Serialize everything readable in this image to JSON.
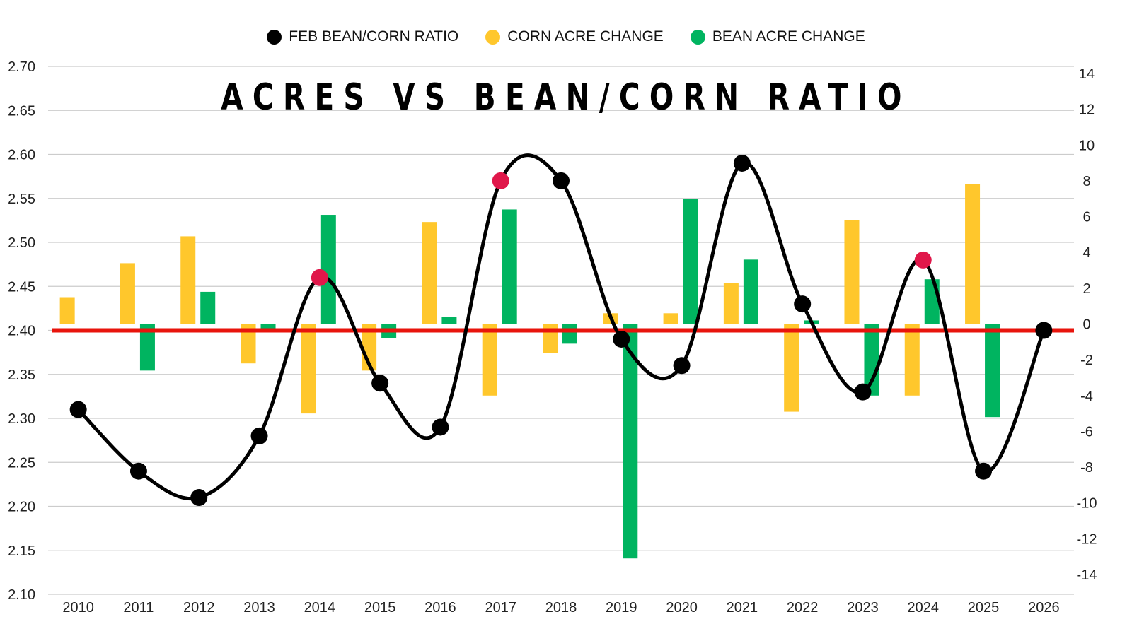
{
  "chart_data": {
    "type": "bar+line",
    "title": "ACRES VS BEAN/CORN RATIO",
    "categories": [
      "2010",
      "2011",
      "2012",
      "2013",
      "2014",
      "2015",
      "2016",
      "2017",
      "2018",
      "2019",
      "2020",
      "2021",
      "2022",
      "2023",
      "2024",
      "2025",
      "2026"
    ],
    "legend": [
      {
        "name": "FEB BEAN/CORN RATIO",
        "color": "#000000"
      },
      {
        "name": "CORN ACRE CHANGE",
        "color": "#FFC72C"
      },
      {
        "name": "BEAN ACRE CHANGE",
        "color": "#00B460"
      }
    ],
    "legend_position": "top-center",
    "series": [
      {
        "name": "FEB BEAN/CORN RATIO",
        "type": "line",
        "axis": "left",
        "values": [
          2.31,
          2.24,
          2.21,
          2.28,
          2.46,
          2.34,
          2.29,
          2.57,
          2.57,
          2.39,
          2.36,
          2.59,
          2.43,
          2.33,
          2.48,
          2.24,
          2.4
        ],
        "highlighted_years": [
          "2014",
          "2017",
          "2024"
        ]
      },
      {
        "name": "CORN ACRE CHANGE",
        "type": "bar",
        "axis": "right",
        "values": [
          1.5,
          3.4,
          4.9,
          -2.2,
          -5.0,
          -2.6,
          5.7,
          -4.0,
          -1.6,
          0.6,
          0.6,
          2.3,
          -4.9,
          5.8,
          -4.0,
          7.8,
          null
        ]
      },
      {
        "name": "BEAN ACRE CHANGE",
        "type": "bar",
        "axis": "right",
        "values": [
          0.0,
          -2.6,
          1.8,
          -0.4,
          6.1,
          -0.8,
          0.4,
          6.4,
          -1.1,
          -13.1,
          7.0,
          3.6,
          0.2,
          -4.0,
          2.5,
          -5.2,
          null
        ]
      }
    ],
    "left_axis": {
      "min": 2.1,
      "max": 2.7,
      "step": 0.05,
      "tick_labels": [
        "2.10",
        "2.15",
        "2.20",
        "2.25",
        "2.30",
        "2.35",
        "2.40",
        "2.45",
        "2.50",
        "2.55",
        "2.60",
        "2.65",
        "2.70"
      ]
    },
    "right_axis": {
      "min": -14,
      "max": 14,
      "step": 2,
      "tick_labels": [
        "-14",
        "-12",
        "-10",
        "-8",
        "-6",
        "-4",
        "-2",
        "0",
        "2",
        "4",
        "6",
        "8",
        "10",
        "12",
        "14"
      ]
    },
    "reference_line": {
      "value": 2.4,
      "axis": "left",
      "color": "#E8140C"
    },
    "colors": {
      "ratio": "#000000",
      "highlight": "#E0174A",
      "corn": "#FFC72C",
      "bean": "#00B460",
      "grid": "#CCCCCC",
      "reference": "#E8140C"
    },
    "grid": true
  }
}
